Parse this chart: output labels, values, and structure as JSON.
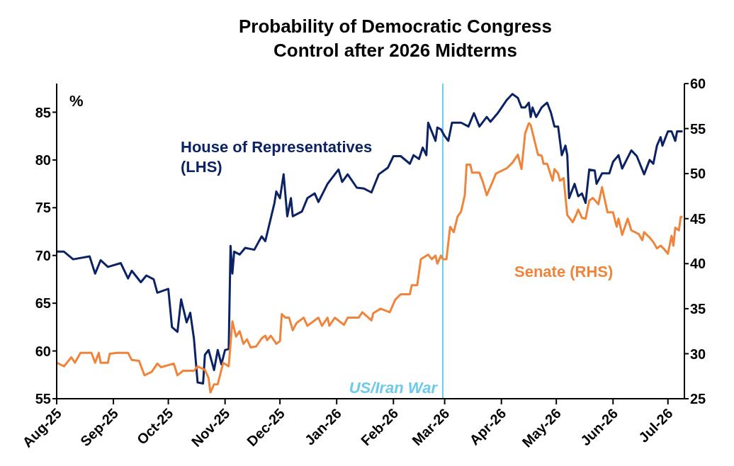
{
  "chart_data": {
    "type": "line",
    "title": "Probability of Democratic Congress Control after 2026 Midterms",
    "annotations": [
      "%"
    ],
    "xlim": [
      "2025-08-01",
      "2026-07-10"
    ],
    "xticks": [
      {
        "value": "2025-08-01",
        "label": "Aug-25"
      },
      {
        "value": "2025-09-01",
        "label": "Sep-25"
      },
      {
        "value": "2025-10-01",
        "label": "Oct-25"
      },
      {
        "value": "2025-11-01",
        "label": "Nov-25"
      },
      {
        "value": "2025-12-01",
        "label": "Dec-25"
      },
      {
        "value": "2026-01-01",
        "label": "Jan-26"
      },
      {
        "value": "2026-02-01",
        "label": "Feb-26"
      },
      {
        "value": "2026-03-01",
        "label": "Mar-26"
      },
      {
        "value": "2026-04-01",
        "label": "Apr-26"
      },
      {
        "value": "2026-05-01",
        "label": "May-26"
      },
      {
        "value": "2026-06-01",
        "label": "Jun-26"
      },
      {
        "value": "2026-07-01",
        "label": "Jul-26"
      }
    ],
    "ylim": [
      55,
      88
    ],
    "yticks": [
      55,
      60,
      65,
      70,
      75,
      80,
      85
    ],
    "y2lim": [
      25,
      60
    ],
    "y2ticks": [
      25,
      30,
      35,
      40,
      45,
      50,
      55,
      60
    ],
    "marker": "none",
    "line_style": "solid",
    "ref_lines": [
      {
        "axis": "x",
        "value": "2026-02-28",
        "label": "US/Iran War",
        "color": "#6ccbe8"
      }
    ],
    "series": [
      {
        "name": "House of Representatives (LHS)",
        "color": "#0b2365",
        "x": [
          "2025-08-01",
          "2025-08-05",
          "2025-08-10",
          "2025-08-19",
          "2025-08-22",
          "2025-08-25",
          "2025-08-29",
          "2025-09-05",
          "2025-09-09",
          "2025-09-11",
          "2025-09-16",
          "2025-09-19",
          "2025-09-23",
          "2025-09-25",
          "2025-10-01",
          "2025-10-03",
          "2025-10-06",
          "2025-10-08",
          "2025-10-11",
          "2025-10-13",
          "2025-10-15",
          "2025-10-17",
          "2025-10-20",
          "2025-10-21",
          "2025-10-23",
          "2025-10-26",
          "2025-10-28",
          "2025-10-30",
          "2025-11-01",
          "2025-11-03",
          "2025-11-04",
          "2025-11-05",
          "2025-11-06",
          "2025-11-09",
          "2025-11-12",
          "2025-11-17",
          "2025-11-21",
          "2025-11-23",
          "2025-11-28",
          "2025-11-29",
          "2025-12-01",
          "2025-12-03",
          "2025-12-05",
          "2025-12-07",
          "2025-12-08",
          "2025-12-13",
          "2025-12-16",
          "2025-12-20",
          "2025-12-22",
          "2025-12-27",
          "2026-01-02",
          "2026-01-04",
          "2026-01-07",
          "2026-01-12",
          "2026-01-16",
          "2026-01-20",
          "2026-01-24",
          "2026-01-29",
          "2026-02-01",
          "2026-02-05",
          "2026-02-10",
          "2026-02-12",
          "2026-02-15",
          "2026-02-17",
          "2026-02-19",
          "2026-02-20",
          "2026-02-24",
          "2026-02-25",
          "2026-02-27",
          "2026-03-01",
          "2026-03-03",
          "2026-03-05",
          "2026-03-10",
          "2026-03-14",
          "2026-03-17",
          "2026-03-20",
          "2026-03-24",
          "2026-03-26",
          "2026-03-30",
          "2026-04-04",
          "2026-04-07",
          "2026-04-10",
          "2026-04-12",
          "2026-04-14",
          "2026-04-16",
          "2026-04-17",
          "2026-04-18",
          "2026-04-20",
          "2026-04-23",
          "2026-04-26",
          "2026-04-28",
          "2026-04-30",
          "2026-05-02",
          "2026-05-04",
          "2026-05-06",
          "2026-05-07",
          "2026-05-08",
          "2026-05-11",
          "2026-05-13",
          "2026-05-15",
          "2026-05-17",
          "2026-05-19",
          "2026-05-22",
          "2026-05-23",
          "2026-05-26",
          "2026-05-30",
          "2026-06-01",
          "2026-06-04",
          "2026-06-06",
          "2026-06-11",
          "2026-06-14",
          "2026-06-18",
          "2026-06-21",
          "2026-06-23",
          "2026-06-25",
          "2026-06-27",
          "2026-06-28",
          "2026-07-01",
          "2026-07-03",
          "2026-07-05",
          "2026-07-06",
          "2026-07-09"
        ],
        "values": [
          70.4,
          70.4,
          69.6,
          69.9,
          68.1,
          69.5,
          68.8,
          69.2,
          67.6,
          68.4,
          67.2,
          67.9,
          67.5,
          66.1,
          66.5,
          62.5,
          62.0,
          65.4,
          63.0,
          64.0,
          61.3,
          56.7,
          56.6,
          59.6,
          60.1,
          58.0,
          60.1,
          58.6,
          60.1,
          60.2,
          71.0,
          68.1,
          70.4,
          70.1,
          70.8,
          70.6,
          72.0,
          71.5,
          75.5,
          76.7,
          76.0,
          78.5,
          74.1,
          76.0,
          74.1,
          74.6,
          76.0,
          76.5,
          75.6,
          77.5,
          79.0,
          77.7,
          78.5,
          77.1,
          77.0,
          76.6,
          78.5,
          79.2,
          80.4,
          80.4,
          79.6,
          80.5,
          80.1,
          81.3,
          80.5,
          83.9,
          82.0,
          83.4,
          83.2,
          82.5,
          82.0,
          83.9,
          83.9,
          83.5,
          84.9,
          83.5,
          84.5,
          84.0,
          84.9,
          86.3,
          86.9,
          86.5,
          85.5,
          85.5,
          86.0,
          84.5,
          85.5,
          84.5,
          85.5,
          86.0,
          85.0,
          83.5,
          83.5,
          80.5,
          81.5,
          80.5,
          76.0,
          77.5,
          76.2,
          76.5,
          75.5,
          79.0,
          78.9,
          77.5,
          78.6,
          78.6,
          79.8,
          80.5,
          79.1,
          81.0,
          80.4,
          78.5,
          80.0,
          79.6,
          81.5,
          82.4,
          81.5,
          83.0,
          83.0,
          82.0,
          83.0,
          83.0
        ]
      },
      {
        "name": "Senate (RHS)",
        "color": "#f0843a",
        "axis": "y2",
        "x": [
          "2025-08-01",
          "2025-08-05",
          "2025-08-09",
          "2025-08-11",
          "2025-08-14",
          "2025-08-20",
          "2025-08-22",
          "2025-08-24",
          "2025-08-25",
          "2025-08-29",
          "2025-08-30",
          "2025-09-03",
          "2025-09-09",
          "2025-09-11",
          "2025-09-15",
          "2025-09-18",
          "2025-09-22",
          "2025-09-25",
          "2025-09-27",
          "2025-10-04",
          "2025-10-06",
          "2025-10-09",
          "2025-10-15",
          "2025-10-17",
          "2025-10-21",
          "2025-10-23",
          "2025-10-24",
          "2025-10-26",
          "2025-10-28",
          "2025-10-31",
          "2025-11-03",
          "2025-11-05",
          "2025-11-07",
          "2025-11-09",
          "2025-11-11",
          "2025-11-13",
          "2025-11-15",
          "2025-11-18",
          "2025-11-21",
          "2025-11-23",
          "2025-11-24",
          "2025-11-26",
          "2025-11-29",
          "2025-12-01",
          "2025-12-02",
          "2025-12-04",
          "2025-12-06",
          "2025-12-08",
          "2025-12-10",
          "2025-12-14",
          "2025-12-16",
          "2025-12-22",
          "2025-12-24",
          "2025-12-27",
          "2025-12-28",
          "2025-12-31",
          "2026-01-05",
          "2026-01-07",
          "2026-01-13",
          "2026-01-15",
          "2026-01-20",
          "2026-01-21",
          "2026-01-25",
          "2026-01-30",
          "2026-02-02",
          "2026-02-05",
          "2026-02-10",
          "2026-02-11",
          "2026-02-14",
          "2026-02-16",
          "2026-02-20",
          "2026-02-22",
          "2026-02-24",
          "2026-02-25",
          "2026-02-27",
          "2026-02-28",
          "2026-03-02",
          "2026-03-04",
          "2026-03-06",
          "2026-03-08",
          "2026-03-10",
          "2026-03-12",
          "2026-03-13",
          "2026-03-15",
          "2026-03-16",
          "2026-03-20",
          "2026-03-22",
          "2026-03-24",
          "2026-03-27",
          "2026-03-29",
          "2026-04-04",
          "2026-04-07",
          "2026-04-10",
          "2026-04-12",
          "2026-04-14",
          "2026-04-16",
          "2026-04-17",
          "2026-04-21",
          "2026-04-23",
          "2026-04-24",
          "2026-04-26",
          "2026-04-29",
          "2026-04-30",
          "2026-05-02",
          "2026-05-03",
          "2026-05-05",
          "2026-05-07",
          "2026-05-10",
          "2026-05-12",
          "2026-05-13",
          "2026-05-15",
          "2026-05-17",
          "2026-05-19",
          "2026-05-21",
          "2026-05-24",
          "2026-05-26",
          "2026-05-29",
          "2026-06-01",
          "2026-06-03",
          "2026-06-04",
          "2026-06-06",
          "2026-06-09",
          "2026-06-11",
          "2026-06-15",
          "2026-06-17",
          "2026-06-18",
          "2026-06-21",
          "2026-06-23",
          "2026-06-25",
          "2026-06-27",
          "2026-06-29",
          "2026-07-01",
          "2026-07-03",
          "2026-07-04",
          "2026-07-05",
          "2026-07-07",
          "2026-07-08",
          "2026-07-09"
        ],
        "values": [
          29.0,
          28.6,
          29.6,
          29.0,
          30.1,
          30.1,
          29.0,
          30.1,
          29.0,
          29.0,
          30.0,
          30.1,
          30.1,
          29.3,
          29.2,
          27.6,
          28.0,
          28.9,
          28.5,
          28.9,
          27.6,
          28.1,
          28.1,
          28.6,
          28.2,
          27.3,
          25.7,
          26.6,
          26.6,
          29.0,
          28.6,
          33.6,
          31.9,
          32.5,
          31.1,
          31.6,
          30.7,
          30.8,
          31.7,
          32.0,
          31.5,
          32.0,
          31.1,
          31.4,
          34.4,
          34.0,
          34.0,
          32.6,
          33.4,
          34.0,
          33.1,
          34.0,
          33.1,
          34.0,
          33.1,
          34.0,
          33.2,
          34.0,
          34.0,
          34.6,
          33.7,
          34.5,
          35.0,
          34.6,
          36.0,
          36.6,
          36.6,
          37.6,
          37.6,
          40.5,
          41.0,
          40.5,
          40.9,
          40.0,
          40.9,
          40.5,
          40.5,
          44.1,
          43.5,
          45.2,
          45.8,
          47.6,
          51.0,
          51.0,
          50.1,
          50.1,
          49.0,
          47.6,
          49.0,
          50.0,
          50.6,
          51.2,
          52.1,
          50.5,
          54.5,
          55.6,
          55.4,
          52.1,
          52.0,
          51.1,
          51.1,
          49.2,
          50.5,
          50.0,
          49.2,
          49.5,
          45.4,
          44.6,
          45.5,
          46.0,
          45.1,
          45.0,
          47.0,
          47.3,
          46.6,
          48.5,
          45.7,
          45.7,
          44.1,
          45.0,
          43.2,
          45.0,
          43.7,
          43.3,
          42.6,
          43.5,
          42.9,
          42.4,
          41.7,
          42.0,
          41.6,
          41.1,
          43.1,
          42.0,
          44.0,
          43.7,
          45.2,
          45.2
        ]
      }
    ]
  }
}
